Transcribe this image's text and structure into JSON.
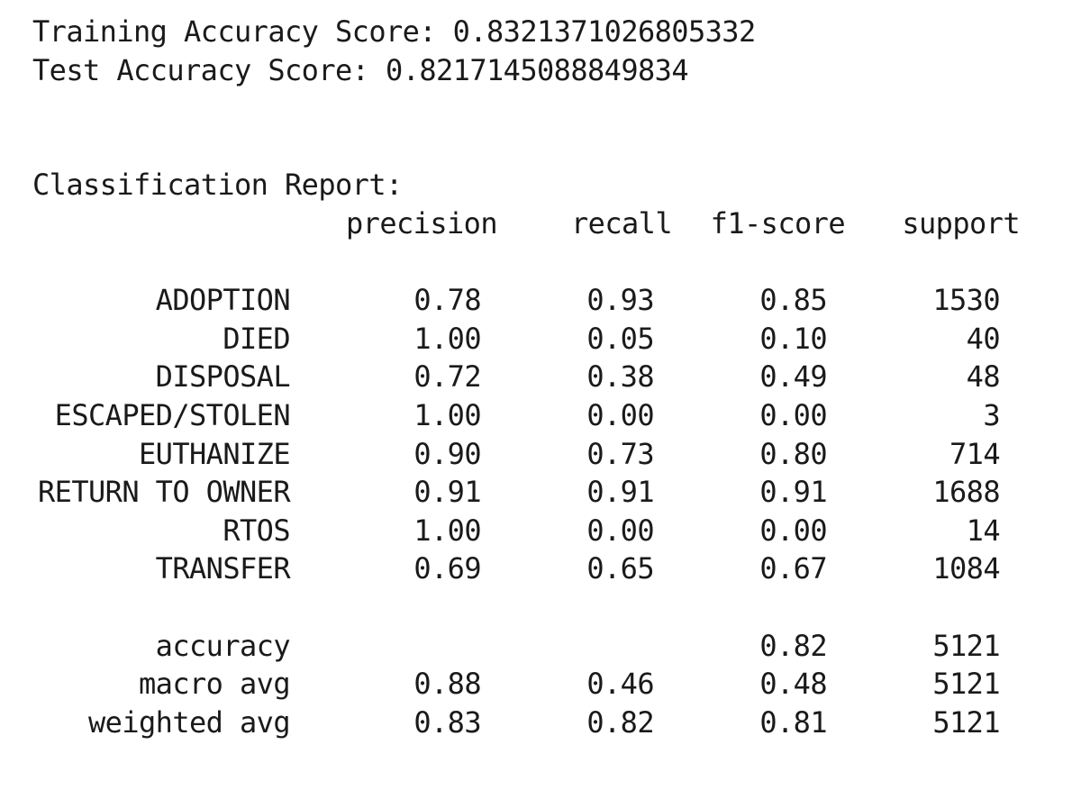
{
  "scores": {
    "training_label": "Training Accuracy Score:",
    "training_value": "0.8321371026805332",
    "test_label": "Test Accuracy Score:",
    "test_value": "0.8217145088849834"
  },
  "report": {
    "title": "Classification Report:",
    "headers": [
      "precision",
      "recall",
      "f1-score",
      "support"
    ],
    "rows": [
      {
        "label": "ADOPTION",
        "precision": "0.78",
        "recall": "0.93",
        "f1": "0.85",
        "support": "1530"
      },
      {
        "label": "DIED",
        "precision": "1.00",
        "recall": "0.05",
        "f1": "0.10",
        "support": "40"
      },
      {
        "label": "DISPOSAL",
        "precision": "0.72",
        "recall": "0.38",
        "f1": "0.49",
        "support": "48"
      },
      {
        "label": "ESCAPED/STOLEN",
        "precision": "1.00",
        "recall": "0.00",
        "f1": "0.00",
        "support": "3"
      },
      {
        "label": "EUTHANIZE",
        "precision": "0.90",
        "recall": "0.73",
        "f1": "0.80",
        "support": "714"
      },
      {
        "label": "RETURN TO OWNER",
        "precision": "0.91",
        "recall": "0.91",
        "f1": "0.91",
        "support": "1688"
      },
      {
        "label": "RTOS",
        "precision": "1.00",
        "recall": "0.00",
        "f1": "0.00",
        "support": "14"
      },
      {
        "label": "TRANSFER",
        "precision": "0.69",
        "recall": "0.65",
        "f1": "0.67",
        "support": "1084"
      }
    ],
    "summary": [
      {
        "label": "accuracy",
        "precision": "",
        "recall": "",
        "f1": "0.82",
        "support": "5121"
      },
      {
        "label": "macro avg",
        "precision": "0.88",
        "recall": "0.46",
        "f1": "0.48",
        "support": "5121"
      },
      {
        "label": "weighted avg",
        "precision": "0.83",
        "recall": "0.82",
        "f1": "0.81",
        "support": "5121"
      }
    ]
  }
}
